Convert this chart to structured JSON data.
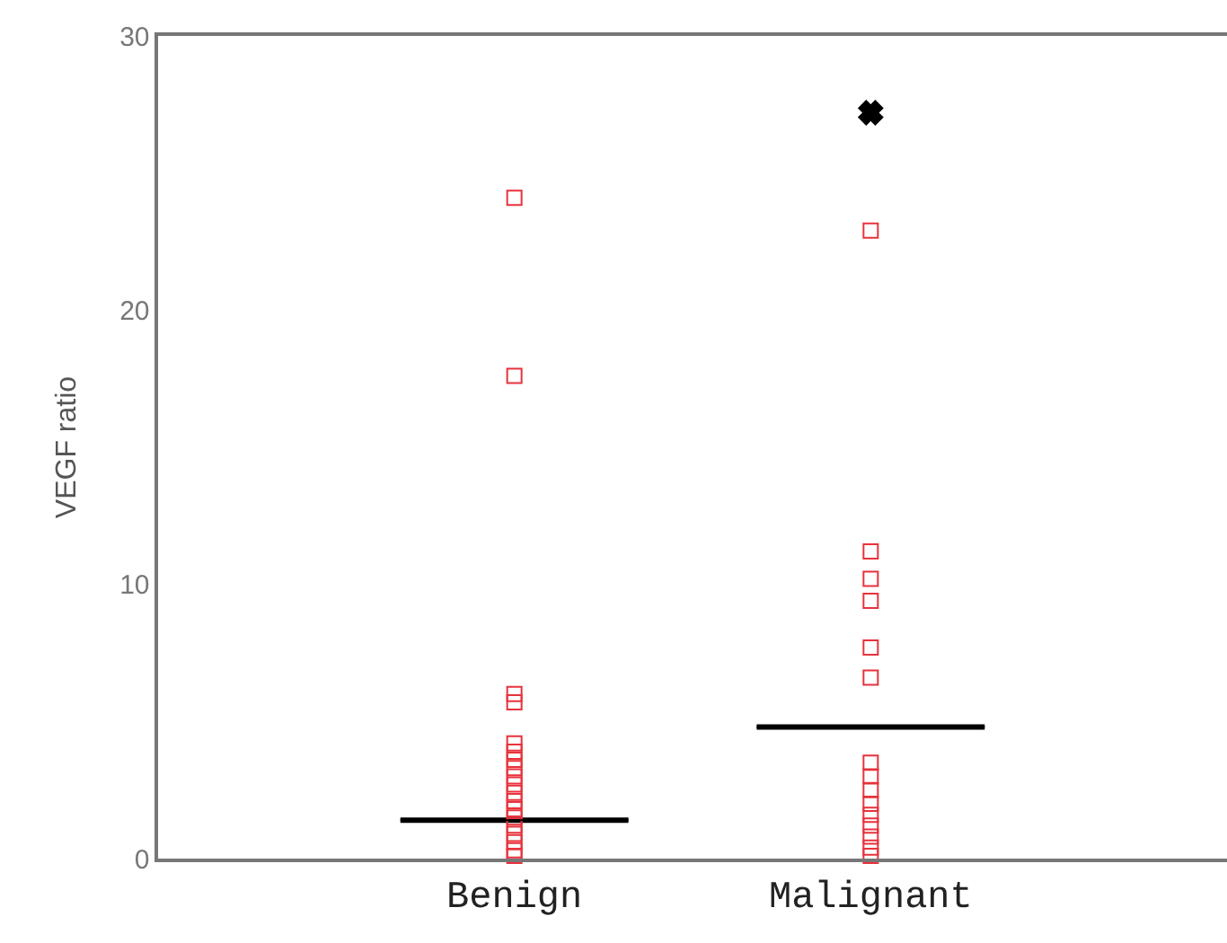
{
  "chart_data": {
    "type": "scatter",
    "ylabel": "VEGF ratio",
    "categories": [
      "Benign",
      "Malignant"
    ],
    "ylim": [
      0,
      30
    ],
    "yticks": [
      0,
      10,
      20,
      30
    ],
    "grid": false,
    "marker": "square",
    "series": [
      {
        "color": "#e8323c",
        "x": [
          "Benign",
          "Benign",
          "Benign",
          "Benign",
          "Benign",
          "Benign",
          "Benign",
          "Benign",
          "Benign",
          "Benign",
          "Benign",
          "Benign",
          "Benign",
          "Benign",
          "Benign",
          "Benign",
          "Benign",
          "Benign",
          "Benign"
        ],
        "values": [
          24.1,
          17.6,
          6.0,
          5.7,
          4.2,
          3.9,
          3.6,
          3.3,
          3.0,
          2.7,
          2.4,
          2.1,
          1.8,
          1.5,
          1.2,
          0.9,
          0.6,
          0.3,
          0.1
        ]
      },
      {
        "color": "#e8323c",
        "x": [
          "Malignant",
          "Malignant",
          "Malignant",
          "Malignant",
          "Malignant",
          "Malignant",
          "Malignant",
          "Malignant",
          "Malignant",
          "Malignant",
          "Malignant",
          "Malignant",
          "Malignant",
          "Malignant",
          "Malignant"
        ],
        "values": [
          22.9,
          11.2,
          10.2,
          9.4,
          7.7,
          6.6,
          3.5,
          3.0,
          2.5,
          2.0,
          1.6,
          1.2,
          0.8,
          0.4,
          0.1
        ]
      },
      {
        "color": "#000000",
        "marker": "cross",
        "x": [
          "Malignant"
        ],
        "values": [
          27.2
        ]
      },
      {
        "type": "box",
        "color": "#000000",
        "boxes": [
          {
            "low": 1.4,
            "q1": 1.4,
            "median": 1.4,
            "q3": 1.4,
            "high": 1.4
          },
          {
            "low": 4.8,
            "q1": 4.8,
            "median": 4.8,
            "q3": 4.8,
            "high": 4.8
          }
        ]
      }
    ]
  }
}
